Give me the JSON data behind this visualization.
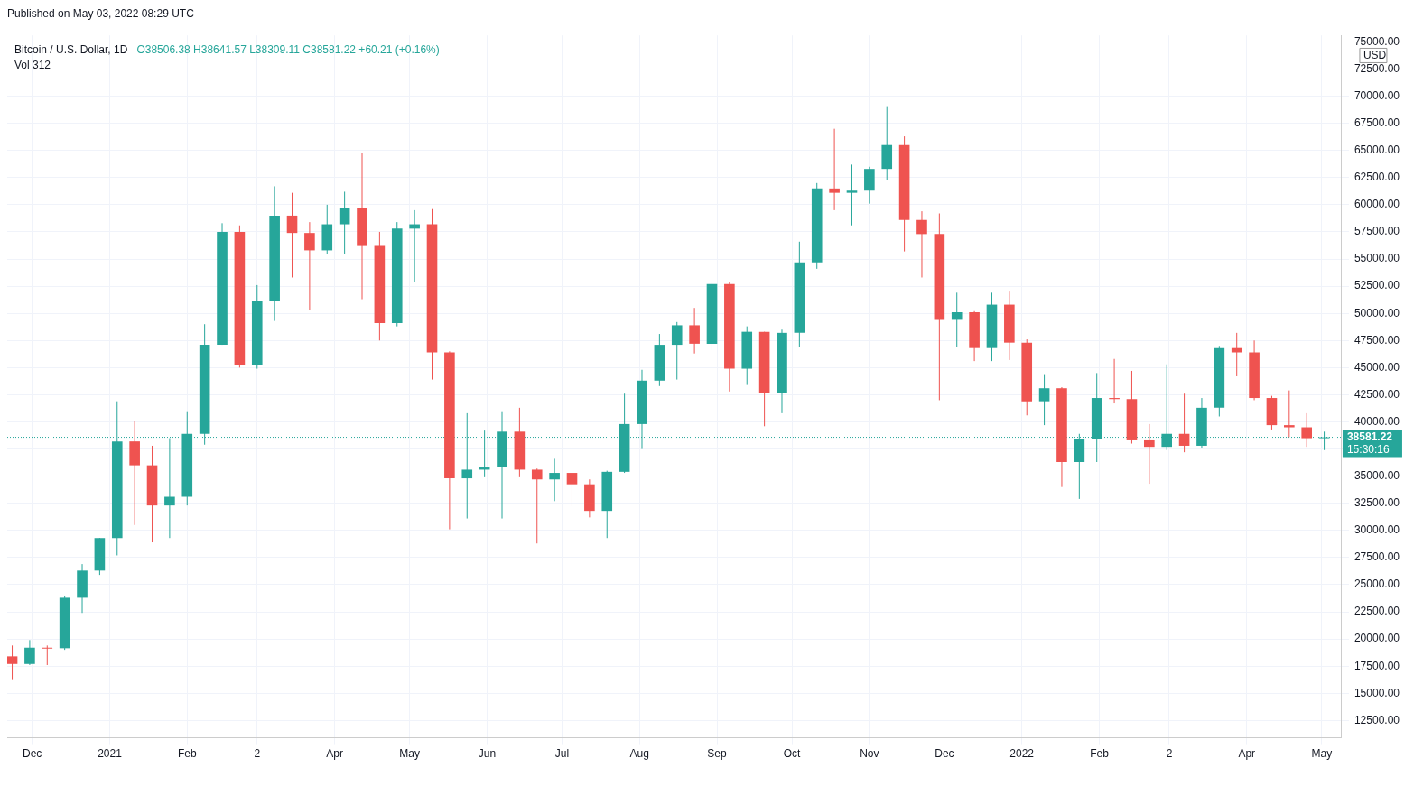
{
  "chart_data": {
    "type": "candlestick",
    "title": "Bitcoin / U.S. Dollar, 1D",
    "ylabel": "USD",
    "annotations": [
      "Published on May 03, 2022 08:29 UTC",
      "O38506.38 H38641.57 L38309.11 C38581.22 +60.21 (+0.16%)",
      "Vol 312",
      "15:30:16"
    ],
    "x": [
      "2020-11-23",
      "2020-11-30",
      "2020-12-07",
      "2020-12-14",
      "2020-12-21",
      "2020-12-28",
      "2021-01-04",
      "2021-01-11",
      "2021-01-18",
      "2021-01-25",
      "2021-02-01",
      "2021-02-08",
      "2021-02-15",
      "2021-02-22",
      "2021-03-01",
      "2021-03-08",
      "2021-03-15",
      "2021-03-22",
      "2021-03-29",
      "2021-04-05",
      "2021-04-12",
      "2021-04-19",
      "2021-04-26",
      "2021-05-03",
      "2021-05-10",
      "2021-05-17",
      "2021-05-24",
      "2021-05-31",
      "2021-06-07",
      "2021-06-14",
      "2021-06-21",
      "2021-06-28",
      "2021-07-05",
      "2021-07-12",
      "2021-07-19",
      "2021-07-26",
      "2021-08-02",
      "2021-08-09",
      "2021-08-16",
      "2021-08-23",
      "2021-08-30",
      "2021-09-06",
      "2021-09-13",
      "2021-09-20",
      "2021-09-27",
      "2021-10-04",
      "2021-10-11",
      "2021-10-18",
      "2021-10-25",
      "2021-11-01",
      "2021-11-08",
      "2021-11-15",
      "2021-11-22",
      "2021-11-29",
      "2021-12-06",
      "2021-12-13",
      "2021-12-20",
      "2021-12-27",
      "2022-01-03",
      "2022-01-10",
      "2022-01-17",
      "2022-01-24",
      "2022-01-31",
      "2022-02-07",
      "2022-02-14",
      "2022-02-21",
      "2022-02-28",
      "2022-03-07",
      "2022-03-14",
      "2022-03-21",
      "2022-03-28",
      "2022-04-04",
      "2022-04-11",
      "2022-04-18",
      "2022-04-25",
      "2022-05-02"
    ],
    "ohlc": [
      [
        18400,
        19400,
        16300,
        17700
      ],
      [
        17700,
        19900,
        17600,
        19200
      ],
      [
        19200,
        19400,
        17600,
        19150
      ],
      [
        19150,
        24000,
        19000,
        23800
      ],
      [
        23800,
        26900,
        22400,
        26300
      ],
      [
        26300,
        29300,
        25900,
        29300
      ],
      [
        29300,
        41900,
        27700,
        38200
      ],
      [
        38200,
        40100,
        30500,
        36000
      ],
      [
        36000,
        37800,
        28900,
        32300
      ],
      [
        32300,
        38500,
        29300,
        33100
      ],
      [
        33100,
        40900,
        32300,
        38900
      ],
      [
        38900,
        49000,
        37900,
        47100
      ],
      [
        47100,
        58300,
        47100,
        57500
      ],
      [
        57500,
        58100,
        45000,
        45200
      ],
      [
        45200,
        52600,
        44900,
        51100
      ],
      [
        51100,
        61700,
        49300,
        59000
      ],
      [
        59000,
        61100,
        53300,
        57400
      ],
      [
        57400,
        58400,
        50300,
        55800
      ],
      [
        55800,
        60000,
        55500,
        58200
      ],
      [
        58200,
        61200,
        55500,
        59700
      ],
      [
        59700,
        64800,
        51300,
        56200
      ],
      [
        56200,
        57500,
        47500,
        49100
      ],
      [
        49100,
        58400,
        48800,
        57800
      ],
      [
        57800,
        59500,
        52900,
        58200
      ],
      [
        58200,
        59600,
        43900,
        46400
      ],
      [
        46400,
        46500,
        30100,
        34800
      ],
      [
        34800,
        40800,
        31100,
        35600
      ],
      [
        35600,
        39200,
        34900,
        35800
      ],
      [
        35800,
        40900,
        31100,
        39100
      ],
      [
        39100,
        41300,
        34900,
        35600
      ],
      [
        35600,
        35700,
        28800,
        34700
      ],
      [
        34700,
        36600,
        32700,
        35300
      ],
      [
        35300,
        35300,
        32200,
        34250
      ],
      [
        34250,
        34700,
        31200,
        31800
      ],
      [
        31800,
        35500,
        29300,
        35400
      ],
      [
        35400,
        42600,
        35300,
        39800
      ],
      [
        39800,
        44800,
        37500,
        43800
      ],
      [
        43800,
        48100,
        43300,
        47100
      ],
      [
        47100,
        49200,
        43900,
        48900
      ],
      [
        48900,
        50500,
        46300,
        47200
      ],
      [
        47200,
        52900,
        46600,
        52700
      ],
      [
        52700,
        52900,
        42800,
        44900
      ],
      [
        44900,
        48800,
        43400,
        48300
      ],
      [
        48300,
        48300,
        39600,
        42700
      ],
      [
        42700,
        48500,
        40800,
        48200
      ],
      [
        48200,
        56600,
        46900,
        54700
      ],
      [
        54700,
        62000,
        54100,
        61500
      ],
      [
        61500,
        67000,
        59500,
        61100
      ],
      [
        61100,
        63700,
        58100,
        61300
      ],
      [
        61300,
        63500,
        60100,
        63300
      ],
      [
        63300,
        69000,
        62300,
        65500
      ],
      [
        65500,
        66300,
        55700,
        58600
      ],
      [
        58600,
        59400,
        53300,
        57300
      ],
      [
        57300,
        59200,
        42000,
        49400
      ],
      [
        49400,
        51900,
        46900,
        50100
      ],
      [
        50100,
        50200,
        45600,
        46800
      ],
      [
        46800,
        51900,
        45600,
        50800
      ],
      [
        50800,
        52000,
        45700,
        47300
      ],
      [
        47300,
        47600,
        40600,
        41900
      ],
      [
        41900,
        44400,
        39700,
        43100
      ],
      [
        43100,
        43200,
        34000,
        36300
      ],
      [
        36300,
        38900,
        32900,
        38400
      ],
      [
        38400,
        44500,
        36300,
        42200
      ],
      [
        42200,
        45800,
        41700,
        42100
      ],
      [
        42100,
        44700,
        38000,
        38300
      ],
      [
        38300,
        39800,
        34300,
        37700
      ],
      [
        37700,
        45300,
        37400,
        38900
      ],
      [
        38900,
        42600,
        37200,
        37800
      ],
      [
        37800,
        42200,
        37600,
        41300
      ],
      [
        41300,
        47000,
        40500,
        46800
      ],
      [
        46800,
        48200,
        44200,
        46400
      ],
      [
        46400,
        47500,
        42000,
        42200
      ],
      [
        42200,
        42400,
        39300,
        39700
      ],
      [
        39700,
        42900,
        38600,
        39500
      ],
      [
        39500,
        40800,
        37700,
        38500
      ],
      [
        38500,
        39100,
        37400,
        38581.22
      ]
    ],
    "colors": [
      "#ef5350",
      "#26a69a",
      "#ef5350",
      "#26a69a",
      "#26a69a",
      "#26a69a",
      "#26a69a",
      "#ef5350",
      "#ef5350",
      "#26a69a",
      "#26a69a",
      "#26a69a",
      "#26a69a",
      "#ef5350",
      "#26a69a",
      "#26a69a",
      "#ef5350",
      "#ef5350",
      "#26a69a",
      "#26a69a",
      "#ef5350",
      "#ef5350",
      "#26a69a",
      "#26a69a",
      "#ef5350",
      "#ef5350",
      "#26a69a",
      "#26a69a",
      "#26a69a",
      "#ef5350",
      "#ef5350",
      "#26a69a",
      "#ef5350",
      "#ef5350",
      "#26a69a",
      "#26a69a",
      "#26a69a",
      "#26a69a",
      "#26a69a",
      "#ef5350",
      "#26a69a",
      "#ef5350",
      "#26a69a",
      "#ef5350",
      "#26a69a",
      "#26a69a",
      "#26a69a",
      "#ef5350",
      "#26a69a",
      "#26a69a",
      "#26a69a",
      "#ef5350",
      "#ef5350",
      "#ef5350",
      "#26a69a",
      "#ef5350",
      "#26a69a",
      "#ef5350",
      "#ef5350",
      "#26a69a",
      "#ef5350",
      "#26a69a",
      "#26a69a",
      "#ef5350",
      "#ef5350",
      "#ef5350",
      "#26a69a",
      "#ef5350",
      "#26a69a",
      "#26a69a",
      "#ef5350",
      "#ef5350",
      "#ef5350",
      "#ef5350",
      "#ef5350",
      "#26a69a"
    ],
    "xlim": [
      "2020-11-21",
      "2022-05-09"
    ],
    "xticks": [
      {
        "value": "2020-12-01",
        "label": "Dec"
      },
      {
        "value": "2021-01-01",
        "label": "2021"
      },
      {
        "value": "2021-02-01",
        "label": "Feb"
      },
      {
        "value": "2021-03-01",
        "label": "2"
      },
      {
        "value": "2021-04-01",
        "label": "Apr"
      },
      {
        "value": "2021-05-01",
        "label": "May"
      },
      {
        "value": "2021-06-01",
        "label": "Jun"
      },
      {
        "value": "2021-07-01",
        "label": "Jul"
      },
      {
        "value": "2021-08-01",
        "label": "Aug"
      },
      {
        "value": "2021-09-01",
        "label": "Sep"
      },
      {
        "value": "2021-10-01",
        "label": "Oct"
      },
      {
        "value": "2021-11-01",
        "label": "Nov"
      },
      {
        "value": "2021-12-01",
        "label": "Dec"
      },
      {
        "value": "2022-01-01",
        "label": "2022"
      },
      {
        "value": "2022-02-01",
        "label": "Feb"
      },
      {
        "value": "2022-03-01",
        "label": "2"
      },
      {
        "value": "2022-04-01",
        "label": "Apr"
      },
      {
        "value": "2022-05-01",
        "label": "May"
      }
    ],
    "ylim": [
      10900,
      75600
    ],
    "yticks": [
      {
        "value": 12500,
        "label": "12500.00"
      },
      {
        "value": 15000,
        "label": "15000.00"
      },
      {
        "value": 17500,
        "label": "17500.00"
      },
      {
        "value": 20000,
        "label": "20000.00"
      },
      {
        "value": 22500,
        "label": "22500.00"
      },
      {
        "value": 25000,
        "label": "25000.00"
      },
      {
        "value": 27500,
        "label": "27500.00"
      },
      {
        "value": 30000,
        "label": "30000.00"
      },
      {
        "value": 32500,
        "label": "32500.00"
      },
      {
        "value": 35000,
        "label": "35000.00"
      },
      {
        "value": 37500,
        "label": null
      },
      {
        "value": 40000,
        "label": "40000.00"
      },
      {
        "value": 42500,
        "label": "42500.00"
      },
      {
        "value": 45000,
        "label": "45000.00"
      },
      {
        "value": 47500,
        "label": "47500.00"
      },
      {
        "value": 50000,
        "label": "50000.00"
      },
      {
        "value": 52500,
        "label": "52500.00"
      },
      {
        "value": 55000,
        "label": "55000.00"
      },
      {
        "value": 57500,
        "label": "57500.00"
      },
      {
        "value": 60000,
        "label": "60000.00"
      },
      {
        "value": 62500,
        "label": "62500.00"
      },
      {
        "value": 65000,
        "label": "65000.00"
      },
      {
        "value": 67500,
        "label": "67500.00"
      },
      {
        "value": 70000,
        "label": "70000.00"
      },
      {
        "value": 72500,
        "label": "72500.00"
      },
      {
        "value": 75000,
        "label": "75000.00"
      }
    ],
    "ref_lines": [
      {
        "axis": "y",
        "value": 38581.22,
        "label": "38581.22",
        "color": "#26a69a",
        "line_style": "dotted"
      }
    ],
    "grid": true
  }
}
